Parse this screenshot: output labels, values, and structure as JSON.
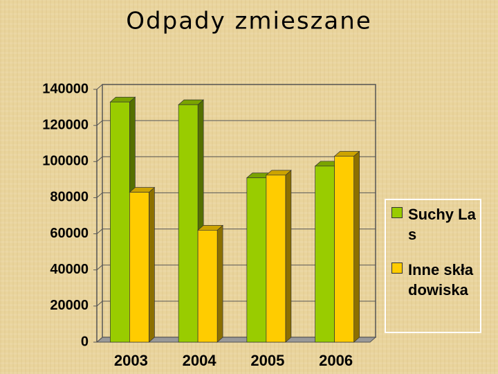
{
  "chart_data": {
    "type": "bar3d",
    "title": "Odpady zmieszane",
    "categories": [
      "2003",
      "2004",
      "2005",
      "2006"
    ],
    "series": [
      {
        "name": "Suchy Las",
        "color": "#99cc00",
        "values": [
          133000,
          131500,
          91000,
          97500
        ]
      },
      {
        "name": "Inne składowiska",
        "color": "#ffcc00",
        "values": [
          83000,
          62000,
          92500,
          103000
        ]
      }
    ],
    "ylim": [
      0,
      140000
    ],
    "yticks": [
      0,
      20000,
      40000,
      60000,
      80000,
      100000,
      120000,
      140000
    ],
    "grid": true,
    "legend": "right"
  }
}
